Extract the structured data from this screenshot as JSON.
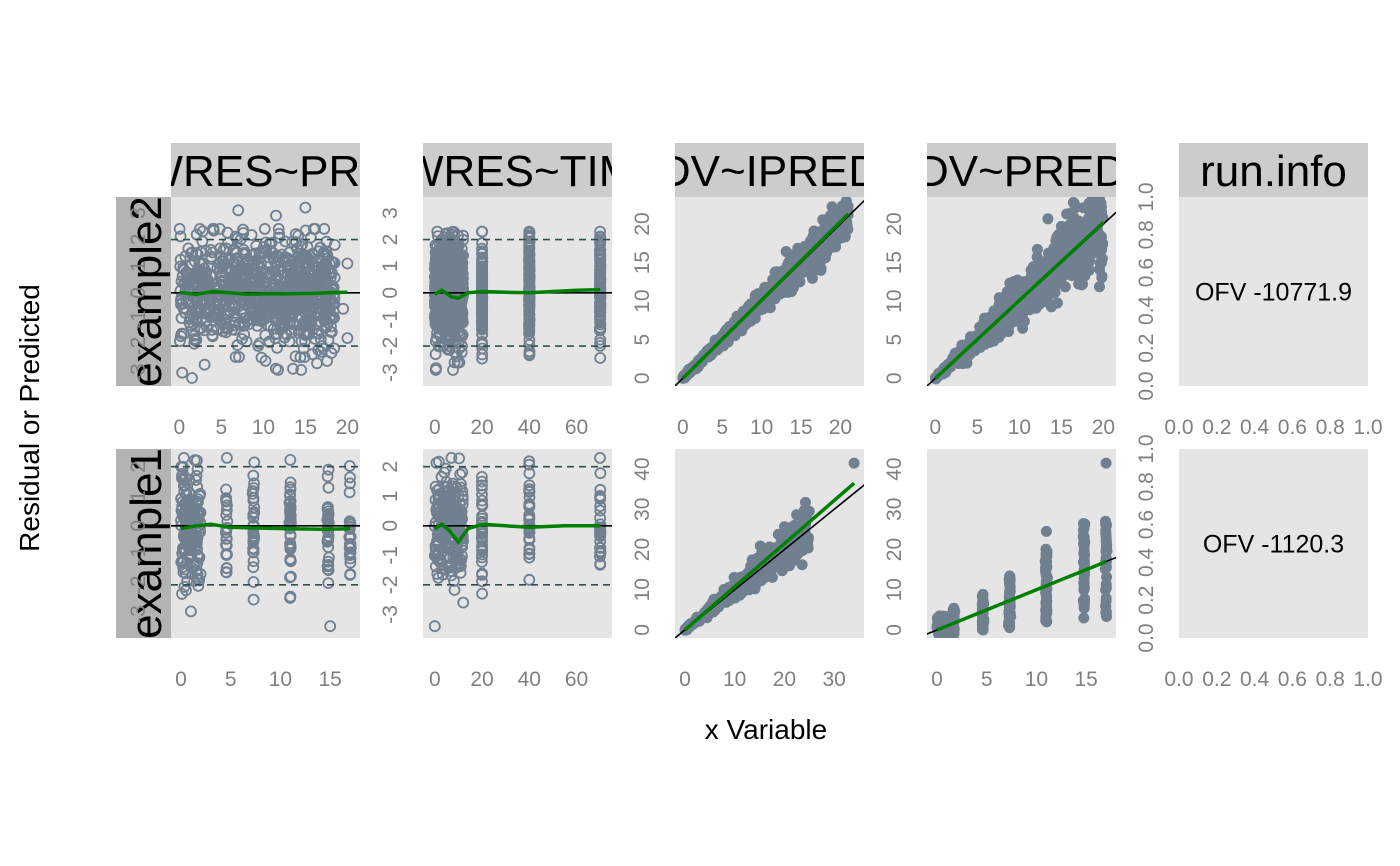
{
  "figure": {
    "xlabel": "x Variable",
    "ylabel": "Residual or Predicted",
    "point_color": "#708090",
    "smooth_color": "#008000",
    "panel_bg": "#E5E5E5",
    "col_strip_bg": "#CCCCCC",
    "row_strip_bg": "#B3B3B3"
  },
  "columns": [
    "CWRES~PRED",
    "CWRES~TIME",
    "DV~IPRED",
    "DV~PRED",
    "run.info"
  ],
  "rows": [
    "example2",
    "example1"
  ],
  "run_info": {
    "example2": "OFV -10771.9",
    "example1": "OFV -1120.3",
    "x_ticks": [
      "0.0",
      "0.2",
      "0.4",
      "0.6",
      "0.8",
      "1.0"
    ],
    "y_ticks": [
      "0.0",
      "0.2",
      "0.4",
      "0.6",
      "0.8",
      "1.0"
    ]
  },
  "chart_data": [
    {
      "type": "scatter",
      "row": "example2",
      "column": "CWRES~PRED",
      "xlim": [
        -1,
        21.5
      ],
      "ylim": [
        -3.5,
        3.6
      ],
      "xticks": [
        0,
        5,
        10,
        15,
        20
      ],
      "yticks": [
        -3,
        -2,
        -1,
        0,
        1,
        2,
        3
      ],
      "hlines": [
        -2,
        2
      ],
      "hline_style": "dashed",
      "cluster": {
        "x_range": [
          0,
          18.5
        ],
        "y_sd": 1.0,
        "count": 900,
        "marker": "open"
      },
      "outliers": [
        [
          7,
          3.1
        ],
        [
          15,
          3.2
        ],
        [
          11.5,
          2.9
        ],
        [
          18.5,
          1.8
        ],
        [
          20,
          1.1
        ],
        [
          20,
          -1.7
        ],
        [
          19.5,
          -0.6
        ],
        [
          17,
          -2.0
        ],
        [
          14.5,
          -2.9
        ],
        [
          3,
          -2.7
        ],
        [
          1.5,
          -3.2
        ]
      ],
      "smooth": [
        [
          0,
          0.02
        ],
        [
          2,
          -0.06
        ],
        [
          4,
          0.05
        ],
        [
          6,
          0.0
        ],
        [
          8,
          -0.05
        ],
        [
          10,
          -0.04
        ],
        [
          12,
          -0.04
        ],
        [
          14,
          -0.03
        ],
        [
          16,
          -0.02
        ],
        [
          18,
          0.01
        ],
        [
          20,
          0.02
        ]
      ]
    },
    {
      "type": "scatter",
      "row": "example2",
      "column": "CWRES~TIME",
      "xlim": [
        -5,
        75
      ],
      "ylim": [
        -3.5,
        3.6
      ],
      "xticks": [
        0,
        20,
        40,
        60
      ],
      "yticks": [
        -3,
        -2,
        -1,
        0,
        1,
        2,
        3
      ],
      "hlines": [
        -2,
        2
      ],
      "hline_style": "dashed",
      "groups": [
        {
          "x": [
            0,
            12
          ],
          "count": 700
        },
        {
          "x": [
            20,
            20
          ],
          "count": 120
        },
        {
          "x": [
            40,
            40
          ],
          "count": 130
        },
        {
          "x": [
            70,
            70
          ],
          "count": 110
        }
      ],
      "cluster": {
        "y_sd": 1.0,
        "marker": "open"
      },
      "smooth": [
        [
          0,
          -0.05
        ],
        [
          3,
          0.1
        ],
        [
          7,
          -0.15
        ],
        [
          10,
          -0.2
        ],
        [
          14,
          0.0
        ],
        [
          20,
          0.05
        ],
        [
          30,
          0.02
        ],
        [
          40,
          0.0
        ],
        [
          50,
          0.05
        ],
        [
          60,
          0.1
        ],
        [
          70,
          0.12
        ]
      ]
    },
    {
      "type": "scatter",
      "row": "example2",
      "column": "DV~IPRED",
      "xlim": [
        -1,
        23
      ],
      "ylim": [
        -1,
        23.5
      ],
      "xticks": [
        0,
        5,
        10,
        15,
        20
      ],
      "yticks": [
        0,
        5,
        10,
        15,
        20
      ],
      "identity_line": true,
      "cluster": {
        "x_range": [
          0,
          21
        ],
        "spread": 0.07,
        "count": 750,
        "marker": "filled"
      },
      "smooth": [
        [
          0,
          0
        ],
        [
          21,
          21.3
        ]
      ]
    },
    {
      "type": "scatter",
      "row": "example2",
      "column": "DV~PRED",
      "xlim": [
        -1,
        21.5
      ],
      "ylim": [
        -1,
        23.5
      ],
      "xticks": [
        0,
        5,
        10,
        15,
        20
      ],
      "yticks": [
        0,
        5,
        10,
        15,
        20
      ],
      "identity_line": true,
      "cluster": {
        "x_range": [
          0,
          20
        ],
        "spread": 0.14,
        "count": 750,
        "marker": "filled"
      },
      "smooth": [
        [
          0,
          0
        ],
        [
          20,
          20.2
        ]
      ]
    },
    {
      "type": "scatter",
      "row": "example1",
      "column": "CWRES~PRED",
      "xlim": [
        -1,
        18
      ],
      "ylim": [
        -3.8,
        2.6
      ],
      "xticks": [
        0,
        5,
        10,
        15
      ],
      "yticks": [
        -3,
        -2,
        -1,
        0,
        1,
        2
      ],
      "hlines": [
        -2,
        2
      ],
      "hline_style": "dashed",
      "groups": [
        {
          "x": [
            0,
            2
          ],
          "count": 180
        },
        {
          "x": [
            4.6,
            4.6
          ],
          "count": 25
        },
        {
          "x": [
            7.3,
            7.3
          ],
          "count": 30
        },
        {
          "x": [
            11.0,
            11.0
          ],
          "count": 45
        },
        {
          "x": [
            14.8,
            14.8
          ],
          "count": 35
        },
        {
          "x": [
            17,
            17
          ],
          "count": 25
        }
      ],
      "cluster": {
        "y_sd": 0.9,
        "marker": "open"
      },
      "outliers": [
        [
          15,
          -3.4
        ],
        [
          7.3,
          -2.5
        ],
        [
          11,
          -2.4
        ],
        [
          1,
          -2.9
        ]
      ],
      "smooth": [
        [
          0,
          -0.1
        ],
        [
          1.5,
          0.0
        ],
        [
          3,
          0.05
        ],
        [
          5,
          -0.05
        ],
        [
          8,
          -0.08
        ],
        [
          11,
          -0.1
        ],
        [
          14,
          -0.12
        ],
        [
          17,
          -0.1
        ]
      ]
    },
    {
      "type": "scatter",
      "row": "example1",
      "column": "CWRES~TIME",
      "xlim": [
        -5,
        75
      ],
      "ylim": [
        -3.8,
        2.6
      ],
      "xticks": [
        0,
        20,
        40,
        60
      ],
      "yticks": [
        -3,
        -2,
        -1,
        0,
        1,
        2
      ],
      "hlines": [
        -2,
        2
      ],
      "hline_style": "dashed",
      "groups": [
        {
          "x": [
            0,
            12
          ],
          "count": 220
        },
        {
          "x": [
            20,
            20
          ],
          "count": 35
        },
        {
          "x": [
            40,
            40
          ],
          "count": 35
        },
        {
          "x": [
            70,
            70
          ],
          "count": 30
        }
      ],
      "cluster": {
        "y_sd": 0.9,
        "marker": "open"
      },
      "outliers": [
        [
          0,
          -3.4
        ],
        [
          12,
          -2.6
        ],
        [
          20,
          -2.3
        ]
      ],
      "smooth": [
        [
          0,
          -0.1
        ],
        [
          3,
          0.05
        ],
        [
          6,
          -0.15
        ],
        [
          10,
          -0.55
        ],
        [
          14,
          -0.1
        ],
        [
          20,
          0.05
        ],
        [
          30,
          0.0
        ],
        [
          40,
          -0.05
        ],
        [
          55,
          0.0
        ],
        [
          70,
          0.0
        ]
      ]
    },
    {
      "type": "scatter",
      "row": "example1",
      "column": "DV~IPRED",
      "xlim": [
        -2,
        36
      ],
      "ylim": [
        -2,
        45
      ],
      "xticks": [
        0,
        10,
        20,
        30
      ],
      "yticks": [
        0,
        10,
        20,
        30,
        40
      ],
      "identity_line": true,
      "cluster": {
        "x_range": [
          0,
          25
        ],
        "spread": 0.12,
        "count": 350,
        "marker": "filled"
      },
      "outliers": [
        [
          34,
          41.5
        ],
        [
          25,
          29.5
        ],
        [
          22,
          26
        ]
      ],
      "smooth": [
        [
          0,
          0
        ],
        [
          34,
          36.5
        ]
      ]
    },
    {
      "type": "scatter",
      "row": "example1",
      "column": "DV~PRED",
      "xlim": [
        -1,
        18
      ],
      "ylim": [
        -2,
        45
      ],
      "xticks": [
        0,
        5,
        10,
        15
      ],
      "yticks": [
        0,
        10,
        20,
        30,
        40
      ],
      "identity_line": true,
      "groups": [
        {
          "x": [
            0,
            1.5
          ],
          "y_center": 1.0,
          "y_half_range": 2.5,
          "count": 80
        },
        {
          "x": [
            1.7,
            1.7
          ],
          "y_center": 2,
          "y_half_range": 3.5,
          "count": 30
        },
        {
          "x": [
            4.6,
            4.6
          ],
          "y_center": 4.5,
          "y_half_range": 4.5,
          "count": 40
        },
        {
          "x": [
            7.3,
            7.3
          ],
          "y_center": 7,
          "y_half_range": 6.5,
          "count": 45
        },
        {
          "x": [
            11.0,
            11.0
          ],
          "y_center": 11,
          "y_half_range": 9.5,
          "count": 55
        },
        {
          "x": [
            14.8,
            14.8
          ],
          "y_center": 14.5,
          "y_half_range": 12,
          "count": 45
        },
        {
          "x": [
            17,
            17
          ],
          "y_center": 16,
          "y_half_range": 13,
          "count": 35
        }
      ],
      "cluster": {
        "marker": "filled"
      },
      "outliers": [
        [
          17,
          41.5
        ],
        [
          11,
          24.5
        ]
      ],
      "smooth": [
        [
          0,
          0
        ],
        [
          17,
          17
        ]
      ]
    }
  ]
}
